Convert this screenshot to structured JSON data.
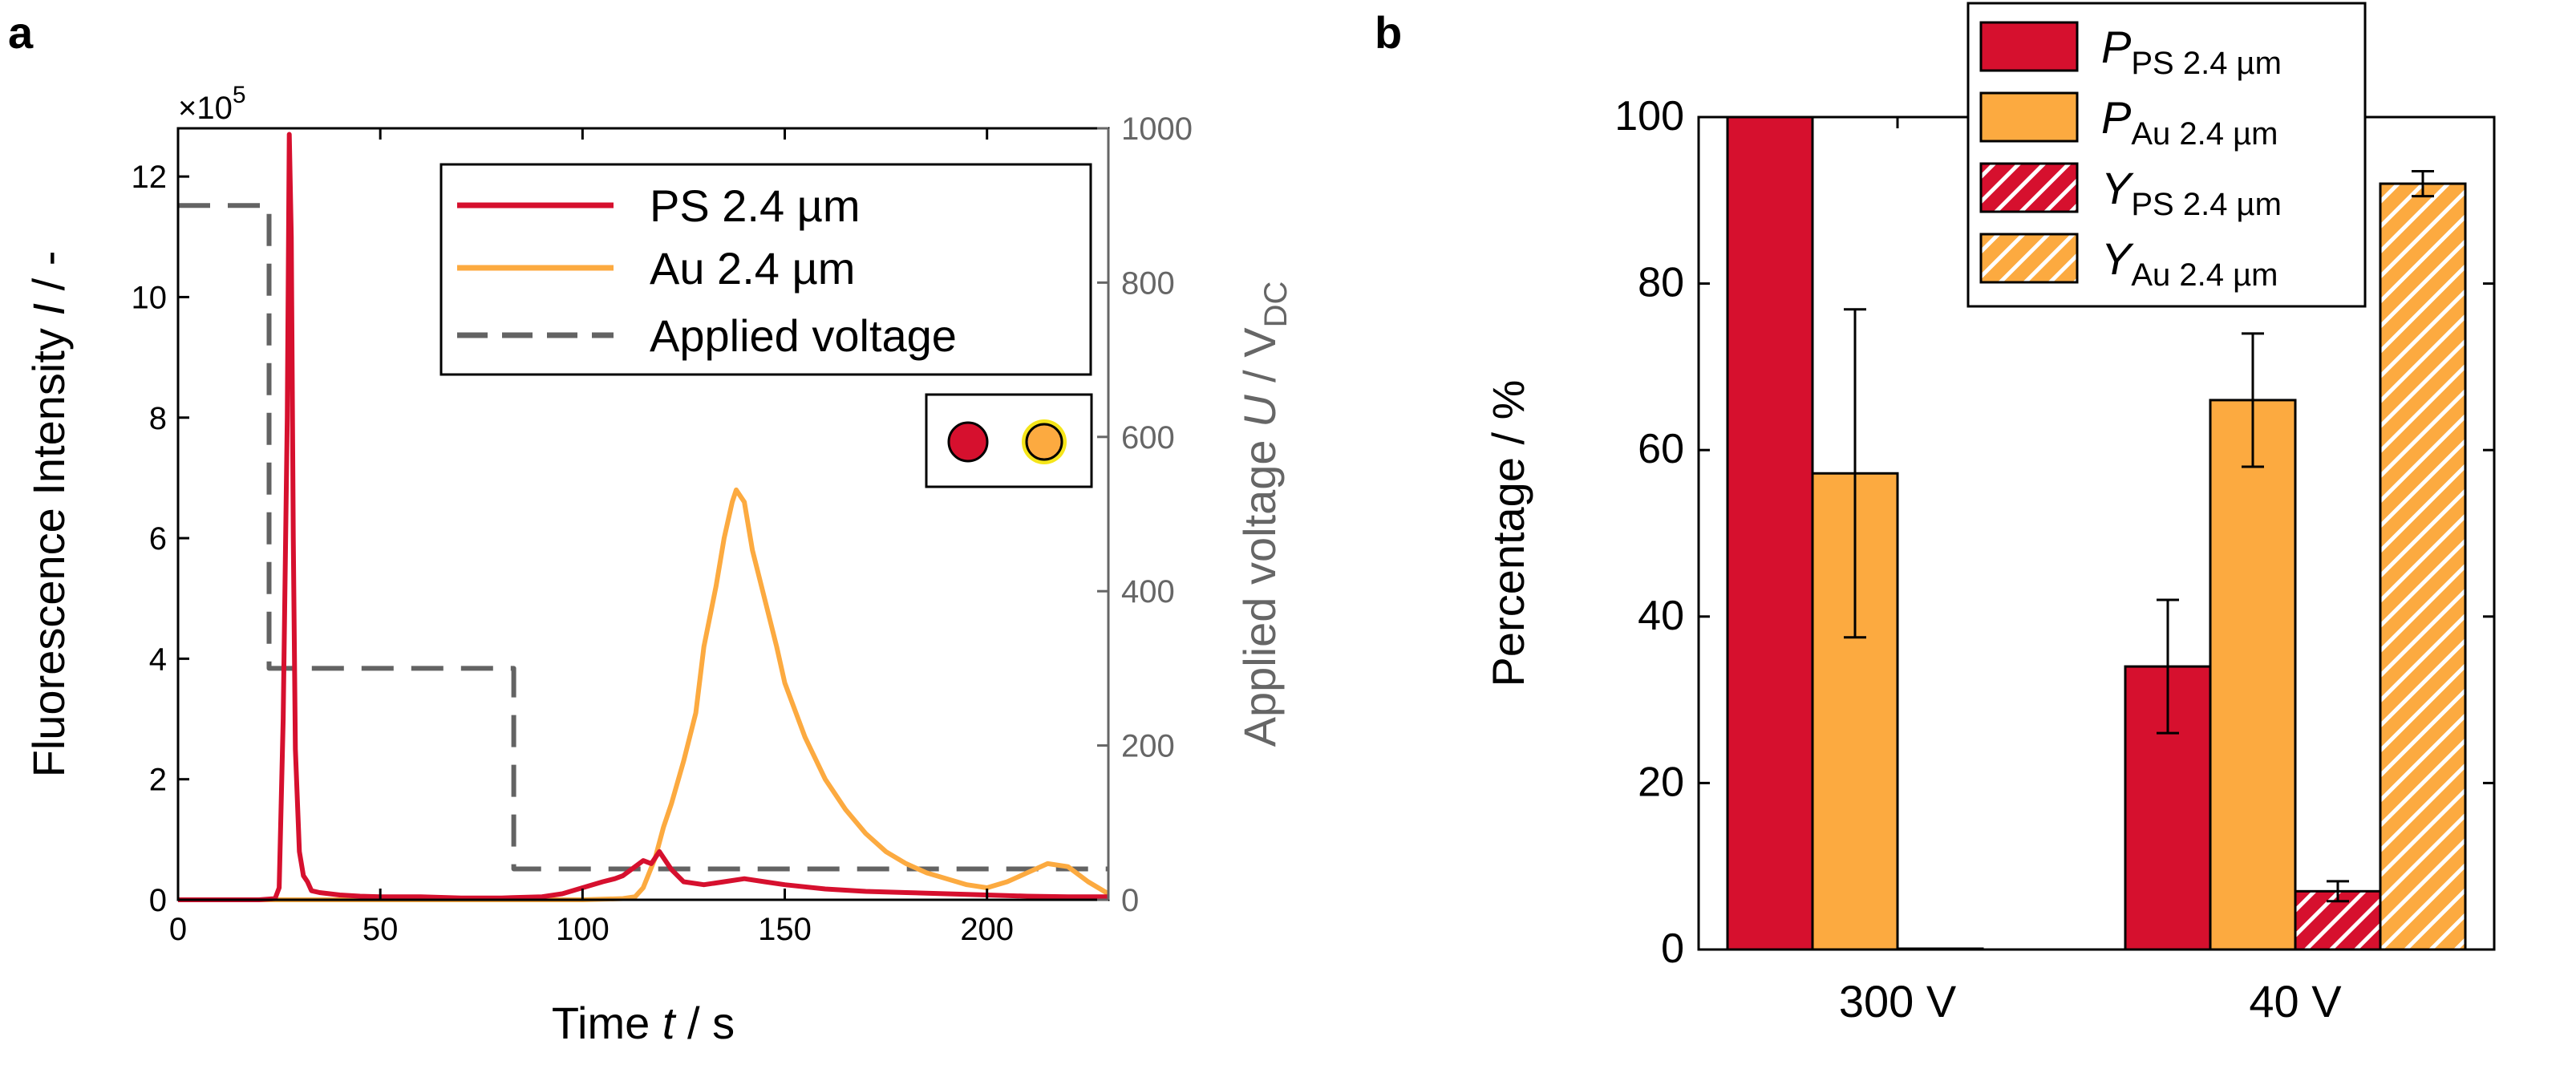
{
  "panels": {
    "a": "a",
    "b": "b"
  },
  "colors": {
    "ps": "#d6102e",
    "au": "#fcaa40",
    "voltage": "#636363",
    "marker_ring": "#f5e51a",
    "axis_right": "#666666"
  },
  "chart_data": [
    {
      "id": "a",
      "type": "line",
      "xlabel": {
        "pre": "Time ",
        "var": "t",
        "post": " / s"
      },
      "ylabel": {
        "pre": "Fluorescence Intensity ",
        "var": "I",
        "post": " / -"
      },
      "y2label": {
        "pre": "Applied voltage ",
        "var": "U",
        "post": " / V",
        "sub": "DC"
      },
      "y_multiplier": {
        "base": "×10",
        "exp": "5"
      },
      "xlim": [
        0,
        230
      ],
      "ylim": [
        0,
        12.8
      ],
      "y2lim": [
        0,
        1000
      ],
      "xticks": [
        "0",
        "50",
        "100",
        "150",
        "200"
      ],
      "yticks": [
        "0",
        "2",
        "4",
        "6",
        "8",
        "10",
        "12"
      ],
      "y2ticks": [
        "0",
        "200",
        "400",
        "600",
        "800",
        "1000"
      ],
      "legend": {
        "position": "top-right",
        "entries": [
          "PS 2.4 µm",
          "Au 2.4 µm",
          "Applied voltage"
        ]
      },
      "series": [
        {
          "name": "PS 2.4 µm",
          "axis": "left",
          "x": [
            0,
            20,
            24,
            25,
            26,
            27,
            27.5,
            28,
            28.5,
            29,
            30,
            31,
            32,
            33,
            35,
            40,
            45,
            50,
            60,
            70,
            80,
            90,
            95,
            100,
            105,
            108,
            110,
            113,
            115,
            117,
            119,
            120,
            122,
            125,
            130,
            135,
            140,
            145,
            150,
            160,
            170,
            180,
            190,
            200,
            210,
            220,
            230
          ],
          "y": [
            0,
            0,
            0.02,
            0.2,
            3,
            8,
            12.7,
            11,
            6,
            2.5,
            0.8,
            0.4,
            0.3,
            0.15,
            0.12,
            0.08,
            0.06,
            0.05,
            0.05,
            0.03,
            0.03,
            0.05,
            0.1,
            0.2,
            0.3,
            0.35,
            0.4,
            0.55,
            0.65,
            0.6,
            0.8,
            0.7,
            0.5,
            0.3,
            0.25,
            0.3,
            0.35,
            0.3,
            0.25,
            0.18,
            0.14,
            0.12,
            0.1,
            0.08,
            0.06,
            0.05,
            0.05
          ]
        },
        {
          "name": "Au 2.4 µm",
          "axis": "left",
          "x": [
            0,
            100,
            110,
            113,
            115,
            118,
            120,
            122,
            125,
            128,
            130,
            133,
            135,
            137,
            138,
            140,
            142,
            145,
            148,
            150,
            155,
            160,
            165,
            170,
            175,
            180,
            185,
            190,
            195,
            200,
            205,
            210,
            215,
            220,
            225,
            230
          ],
          "y": [
            0,
            0,
            0.02,
            0.05,
            0.2,
            0.7,
            1.2,
            1.6,
            2.3,
            3.1,
            4.2,
            5.2,
            6,
            6.6,
            6.8,
            6.6,
            5.8,
            5,
            4.2,
            3.6,
            2.7,
            2.0,
            1.5,
            1.1,
            0.8,
            0.6,
            0.45,
            0.35,
            0.25,
            0.2,
            0.3,
            0.45,
            0.6,
            0.55,
            0.3,
            0.1
          ]
        },
        {
          "name": "Applied voltage",
          "axis": "right",
          "style": "dashed",
          "x": [
            0,
            22.5,
            22.5,
            83,
            83,
            230
          ],
          "y": [
            900,
            900,
            300,
            300,
            40,
            40
          ]
        }
      ]
    },
    {
      "id": "b",
      "type": "bar",
      "ylabel": "Percentage / %",
      "ylim": [
        0,
        100
      ],
      "yticks": [
        "0",
        "20",
        "40",
        "60",
        "80",
        "100"
      ],
      "categories": [
        "300 V",
        "40 V"
      ],
      "legend": {
        "position": "top-right",
        "entries": [
          {
            "var": "P",
            "sub": "PS 2.4 µm"
          },
          {
            "var": "P",
            "sub": "Au 2.4 µm"
          },
          {
            "var": "Y",
            "sub": "PS 2.4 µm"
          },
          {
            "var": "Y",
            "sub": "Au 2.4 µm"
          }
        ]
      },
      "series": [
        {
          "name": "P PS 2.4 µm",
          "values": [
            100,
            34
          ],
          "errors": [
            0,
            8
          ]
        },
        {
          "name": "P Au 2.4 µm",
          "values": [
            57.2,
            66
          ],
          "errors": [
            19.7,
            8
          ]
        },
        {
          "name": "Y PS 2.4 µm",
          "values": [
            0.1,
            7
          ],
          "errors": [
            0,
            1.2
          ]
        },
        {
          "name": "Y Au 2.4 µm",
          "values": [
            0,
            92
          ],
          "errors": [
            0,
            1.5
          ]
        }
      ]
    }
  ]
}
